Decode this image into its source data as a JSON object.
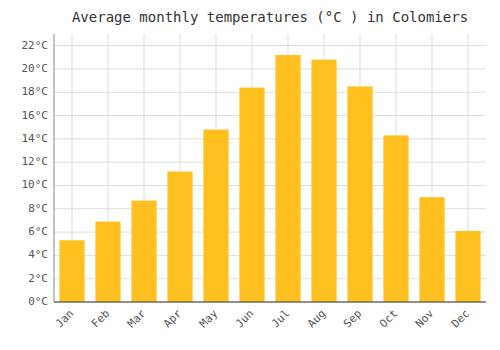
{
  "chart_data": {
    "type": "bar",
    "title": "Average monthly temperatures (°C ) in Colomiers",
    "categories": [
      "Jan",
      "Feb",
      "Mar",
      "Apr",
      "May",
      "Jun",
      "Jul",
      "Aug",
      "Sep",
      "Oct",
      "Nov",
      "Dec"
    ],
    "values": [
      5.3,
      6.9,
      8.7,
      11.2,
      14.8,
      18.4,
      21.2,
      20.8,
      18.5,
      14.3,
      9.0,
      6.1
    ],
    "color": "#FFC020",
    "ylim": [
      0,
      23
    ],
    "yticks": [
      {
        "value": 0,
        "label": "0°C"
      },
      {
        "value": 2,
        "label": "2°C"
      },
      {
        "value": 4,
        "label": "4°C"
      },
      {
        "value": 6,
        "label": "6°C"
      },
      {
        "value": 8,
        "label": "8°C"
      },
      {
        "value": 10,
        "label": "10°C"
      },
      {
        "value": 12,
        "label": "12°C"
      },
      {
        "value": 14,
        "label": "14°C"
      },
      {
        "value": 16,
        "label": "16°C"
      },
      {
        "value": 18,
        "label": "18°C"
      },
      {
        "value": 20,
        "label": "20°C"
      },
      {
        "value": 22,
        "label": "22°C"
      }
    ],
    "grid": true
  }
}
